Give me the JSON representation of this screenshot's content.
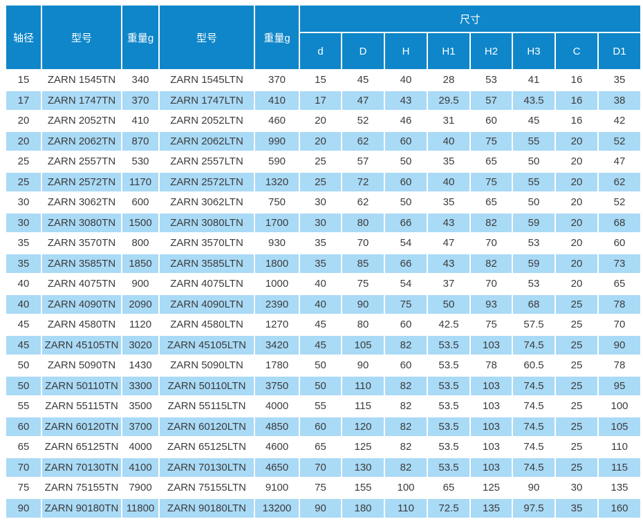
{
  "chart_data": {
    "type": "table",
    "title": "",
    "dimensions_group_label": "尺寸",
    "columns": [
      "轴径",
      "型号",
      "重量g",
      "型号",
      "重量g"
    ],
    "dimension_columns": [
      "d",
      "D",
      "H",
      "H1",
      "H2",
      "H3",
      "C",
      "D1"
    ],
    "rows": [
      [
        "15",
        "ZARN 1545TN",
        "340",
        "ZARN 1545LTN",
        "370",
        "15",
        "45",
        "40",
        "28",
        "53",
        "41",
        "16",
        "35"
      ],
      [
        "17",
        "ZARN 1747TN",
        "370",
        "ZARN 1747LTN",
        "410",
        "17",
        "47",
        "43",
        "29.5",
        "57",
        "43.5",
        "16",
        "38"
      ],
      [
        "20",
        "ZARN 2052TN",
        "410",
        "ZARN 2052LTN",
        "460",
        "20",
        "52",
        "46",
        "31",
        "60",
        "45",
        "16",
        "42"
      ],
      [
        "20",
        "ZARN 2062TN",
        "870",
        "ZARN 2062LTN",
        "990",
        "20",
        "62",
        "60",
        "40",
        "75",
        "55",
        "20",
        "52"
      ],
      [
        "25",
        "ZARN 2557TN",
        "530",
        "ZARN 2557LTN",
        "590",
        "25",
        "57",
        "50",
        "35",
        "65",
        "50",
        "20",
        "47"
      ],
      [
        "25",
        "ZARN 2572TN",
        "1170",
        "ZARN 2572LTN",
        "1320",
        "25",
        "72",
        "60",
        "40",
        "75",
        "55",
        "20",
        "62"
      ],
      [
        "30",
        "ZARN 3062TN",
        "600",
        "ZARN 3062LTN",
        "750",
        "30",
        "62",
        "50",
        "35",
        "65",
        "50",
        "20",
        "52"
      ],
      [
        "30",
        "ZARN 3080TN",
        "1500",
        "ZARN 3080LTN",
        "1700",
        "30",
        "80",
        "66",
        "43",
        "82",
        "59",
        "20",
        "68"
      ],
      [
        "35",
        "ZARN 3570TN",
        "800",
        "ZARN 3570LTN",
        "930",
        "35",
        "70",
        "54",
        "47",
        "70",
        "53",
        "20",
        "60"
      ],
      [
        "35",
        "ZARN 3585TN",
        "1850",
        "ZARN 3585LTN",
        "1800",
        "35",
        "85",
        "66",
        "43",
        "82",
        "59",
        "20",
        "73"
      ],
      [
        "40",
        "ZARN 4075TN",
        "900",
        "ZARN 4075LTN",
        "1000",
        "40",
        "75",
        "54",
        "37",
        "70",
        "53",
        "20",
        "65"
      ],
      [
        "40",
        "ZARN 4090TN",
        "2090",
        "ZARN 4090LTN",
        "2390",
        "40",
        "90",
        "75",
        "50",
        "93",
        "68",
        "25",
        "78"
      ],
      [
        "45",
        "ZARN 4580TN",
        "1120",
        "ZARN 4580LTN",
        "1270",
        "45",
        "80",
        "60",
        "42.5",
        "75",
        "57.5",
        "25",
        "70"
      ],
      [
        "45",
        "ZARN 45105TN",
        "3020",
        "ZARN 45105LTN",
        "3420",
        "45",
        "105",
        "82",
        "53.5",
        "103",
        "74.5",
        "25",
        "90"
      ],
      [
        "50",
        "ZARN 5090TN",
        "1430",
        "ZARN 5090LTN",
        "1780",
        "50",
        "90",
        "60",
        "53.5",
        "78",
        "60.5",
        "25",
        "78"
      ],
      [
        "50",
        "ZARN 50110TN",
        "3300",
        "ZARN 50110LTN",
        "3750",
        "50",
        "110",
        "82",
        "53.5",
        "103",
        "74.5",
        "25",
        "95"
      ],
      [
        "55",
        "ZARN 55115TN",
        "3500",
        "ZARN 55115LTN",
        "4000",
        "55",
        "115",
        "82",
        "53.5",
        "103",
        "74.5",
        "25",
        "100"
      ],
      [
        "60",
        "ZARN 60120TN",
        "3700",
        "ZARN 60120LTN",
        "4850",
        "60",
        "120",
        "82",
        "53.5",
        "103",
        "74.5",
        "25",
        "105"
      ],
      [
        "65",
        "ZARN 65125TN",
        "4000",
        "ZARN 65125LTN",
        "4600",
        "65",
        "125",
        "82",
        "53.5",
        "103",
        "74.5",
        "25",
        "110"
      ],
      [
        "70",
        "ZARN 70130TN",
        "4100",
        "ZARN 70130LTN",
        "4650",
        "70",
        "130",
        "82",
        "53.5",
        "103",
        "74.5",
        "25",
        "115"
      ],
      [
        "75",
        "ZARN 75155TN",
        "7900",
        "ZARN 75155LTN",
        "9100",
        "75",
        "155",
        "100",
        "65",
        "125",
        "90",
        "30",
        "135"
      ],
      [
        "90",
        "ZARN 90180TN",
        "11800",
        "ZARN 90180LTN",
        "13200",
        "90",
        "180",
        "110",
        "72.5",
        "135",
        "97.5",
        "35",
        "160"
      ]
    ]
  },
  "colors": {
    "header_bg": "#0E86C9",
    "alt_row_bg": "#A9DAF6",
    "row_bg": "#FFFFFF",
    "header_text": "#FFFFFF",
    "cell_text": "#3B3B3B"
  }
}
